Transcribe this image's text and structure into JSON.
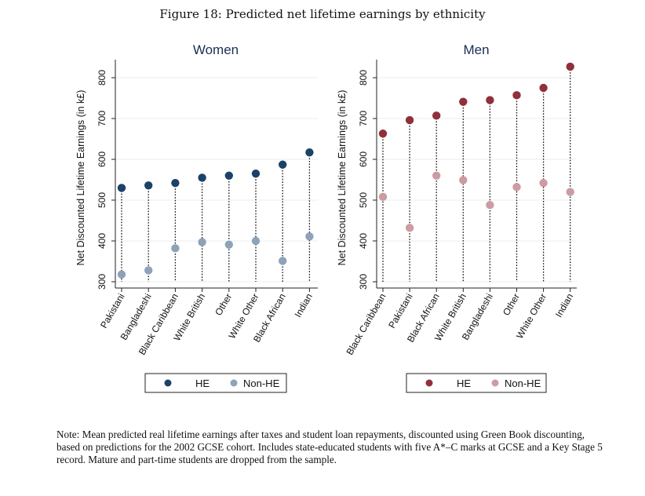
{
  "figure_title": "Figure 18: Predicted net lifetime earnings by ethnicity",
  "note": "Note: Mean predicted real lifetime earnings after taxes and student loan repayments, discounted using Green Book discounting, based on predictions for the 2002 GCSE cohort. Includes state-educated students with five A*–C marks at GCSE and a Key Stage 5 record. Mature and part-time students are dropped from the sample.",
  "chart_data": [
    {
      "type": "scatter",
      "title": "Women",
      "xlabel": "",
      "ylabel": "Net Discounted Lifetime Earnings (in k£)",
      "ylim": [
        300,
        840
      ],
      "yticks": [
        300,
        400,
        500,
        600,
        700,
        800
      ],
      "grid": true,
      "categories": [
        "Pakistani",
        "Bangladeshi",
        "Black Caribbean",
        "White British",
        "Other",
        "White Other",
        "Black African",
        "Indian"
      ],
      "series": [
        {
          "name": "HE",
          "color": "#1c4268",
          "values": [
            530,
            536,
            542,
            555,
            560,
            565,
            587,
            617
          ]
        },
        {
          "name": "Non-HE",
          "color": "#8ea2b8",
          "values": [
            318,
            328,
            382,
            397,
            391,
            400,
            351,
            411
          ]
        }
      ],
      "dropline_color": "#111111",
      "legend": {
        "position": "bottom",
        "entries": [
          "HE",
          "Non-HE"
        ]
      }
    },
    {
      "type": "scatter",
      "title": "Men",
      "xlabel": "",
      "ylabel": "Net Discounted Lifetime Earnings (in k£)",
      "ylim": [
        300,
        840
      ],
      "yticks": [
        300,
        400,
        500,
        600,
        700,
        800
      ],
      "grid": true,
      "categories": [
        "Black Caribbean",
        "Pakistani",
        "Black African",
        "White British",
        "Bangladeshi",
        "Other",
        "White Other",
        "Indian"
      ],
      "series": [
        {
          "name": "HE",
          "color": "#90303a",
          "values": [
            663,
            696,
            707,
            741,
            745,
            757,
            775,
            827
          ]
        },
        {
          "name": "Non-HE",
          "color": "#cc9ca2",
          "values": [
            508,
            432,
            560,
            549,
            488,
            532,
            542,
            520
          ]
        }
      ],
      "dropline_color": "#111111",
      "legend": {
        "position": "bottom",
        "entries": [
          "HE",
          "Non-HE"
        ]
      }
    }
  ]
}
